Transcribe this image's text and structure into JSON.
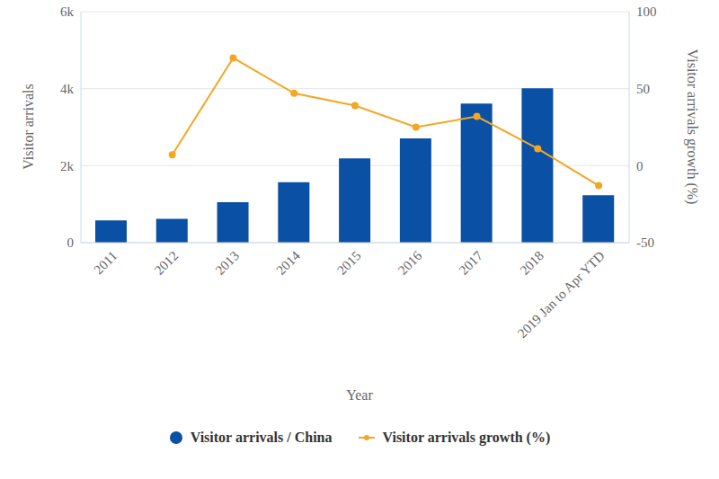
{
  "chart_data": {
    "type": "bar",
    "x_label": "Year",
    "y_label": "Visitor arrivals",
    "y2_label": "Visitor arrivals growth (%)",
    "categories": [
      "2011",
      "2012",
      "2013",
      "2014",
      "2015",
      "2016",
      "2017",
      "2018",
      "2019 Jan to Apr YTD"
    ],
    "series": [
      {
        "name": "Visitor arrivals / China",
        "type": "bar",
        "color": "#0a50a5",
        "values": [
          580,
          620,
          1050,
          1570,
          2190,
          2710,
          3610,
          4010,
          1230
        ]
      },
      {
        "name": "Visitor arrivals growth (%)",
        "type": "line",
        "axis": "y2",
        "color": "#f5a623",
        "marker": "circle",
        "values": [
          null,
          7,
          70,
          47,
          39,
          25,
          32,
          11,
          -13
        ]
      }
    ],
    "ylim": [
      0,
      6000
    ],
    "yticks": [
      0,
      {
        "value": 2000,
        "label": "2k"
      },
      {
        "value": 4000,
        "label": "4k"
      },
      {
        "value": 6000,
        "label": "6k"
      }
    ],
    "y2lim": [
      -50,
      100
    ],
    "y2ticks": [
      -50,
      0,
      50,
      100
    ],
    "grid": true,
    "legend": "bottom"
  }
}
